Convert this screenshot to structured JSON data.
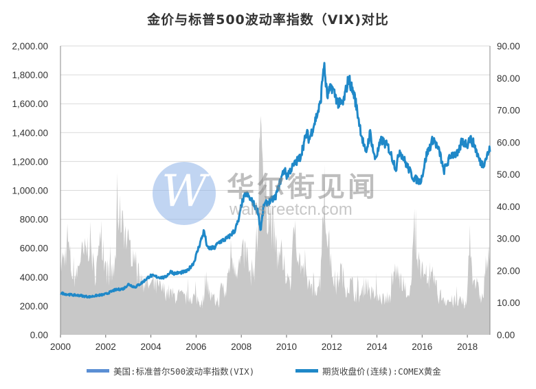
{
  "chart_data": {
    "type": "area+line",
    "title": "金价与标普500波动率指数（VIX)对比",
    "x_axis": {
      "range": [
        2000,
        2019.0
      ],
      "tick_labels": [
        "2000",
        "2002",
        "2004",
        "2006",
        "2008",
        "2010",
        "2012",
        "2014",
        "2016",
        "2018"
      ]
    },
    "y_left": {
      "range": [
        0,
        2000
      ],
      "tick_labels": [
        "0.00",
        "200.00",
        "400.00",
        "600.00",
        "800.00",
        "1,000.00",
        "1,200.00",
        "1,400.00",
        "1,600.00",
        "1,800.00",
        "2,000.00"
      ]
    },
    "y_right": {
      "range": [
        0,
        90
      ],
      "tick_labels": [
        "0.00",
        "10.00",
        "20.00",
        "30.00",
        "40.00",
        "50.00",
        "60.00",
        "70.00",
        "80.00",
        "90.00"
      ]
    },
    "grid": "horizontal",
    "legend_position": "bottom",
    "series": [
      {
        "name": "美国:标准普尔500波动率指数(VIX)",
        "axis": "right",
        "style": "area",
        "color": "#c8c8c8",
        "legend_color": "#5b8fd4",
        "points": [
          [
            2000.0,
            24
          ],
          [
            2000.2,
            26
          ],
          [
            2000.3,
            33
          ],
          [
            2000.5,
            21
          ],
          [
            2000.7,
            19
          ],
          [
            2000.9,
            27
          ],
          [
            2001.0,
            26
          ],
          [
            2001.2,
            29
          ],
          [
            2001.3,
            32
          ],
          [
            2001.5,
            20
          ],
          [
            2001.7,
            26
          ],
          [
            2001.75,
            43
          ],
          [
            2001.9,
            25
          ],
          [
            2002.0,
            22
          ],
          [
            2002.2,
            20
          ],
          [
            2002.4,
            21
          ],
          [
            2002.55,
            45
          ],
          [
            2002.6,
            38
          ],
          [
            2002.75,
            42
          ],
          [
            2002.85,
            34
          ],
          [
            2003.0,
            30
          ],
          [
            2003.2,
            28
          ],
          [
            2003.4,
            21
          ],
          [
            2003.6,
            19
          ],
          [
            2003.8,
            17
          ],
          [
            2004.0,
            16
          ],
          [
            2004.3,
            16
          ],
          [
            2004.5,
            15
          ],
          [
            2004.8,
            14
          ],
          [
            2005.0,
            13
          ],
          [
            2005.3,
            13
          ],
          [
            2005.5,
            12
          ],
          [
            2005.8,
            13
          ],
          [
            2006.0,
            12
          ],
          [
            2006.3,
            11
          ],
          [
            2006.45,
            20
          ],
          [
            2006.6,
            13
          ],
          [
            2006.9,
            11
          ],
          [
            2007.0,
            11
          ],
          [
            2007.15,
            17
          ],
          [
            2007.3,
            13
          ],
          [
            2007.55,
            28
          ],
          [
            2007.65,
            25
          ],
          [
            2007.85,
            22
          ],
          [
            2008.0,
            25
          ],
          [
            2008.2,
            28
          ],
          [
            2008.4,
            20
          ],
          [
            2008.6,
            23
          ],
          [
            2008.75,
            35
          ],
          [
            2008.82,
            70
          ],
          [
            2008.88,
            80
          ],
          [
            2008.95,
            55
          ],
          [
            2009.0,
            45
          ],
          [
            2009.2,
            42
          ],
          [
            2009.4,
            35
          ],
          [
            2009.6,
            26
          ],
          [
            2009.8,
            24
          ],
          [
            2010.0,
            20
          ],
          [
            2010.2,
            18
          ],
          [
            2010.38,
            40
          ],
          [
            2010.5,
            27
          ],
          [
            2010.7,
            22
          ],
          [
            2010.9,
            18
          ],
          [
            2011.0,
            17
          ],
          [
            2011.3,
            16
          ],
          [
            2011.5,
            18
          ],
          [
            2011.6,
            45
          ],
          [
            2011.7,
            40
          ],
          [
            2011.85,
            32
          ],
          [
            2012.0,
            22
          ],
          [
            2012.2,
            16
          ],
          [
            2012.4,
            22
          ],
          [
            2012.6,
            16
          ],
          [
            2012.9,
            17
          ],
          [
            2013.0,
            14
          ],
          [
            2013.3,
            13
          ],
          [
            2013.5,
            18
          ],
          [
            2013.8,
            13
          ],
          [
            2014.0,
            14
          ],
          [
            2014.3,
            12
          ],
          [
            2014.6,
            13
          ],
          [
            2014.8,
            22
          ],
          [
            2015.0,
            19
          ],
          [
            2015.3,
            14
          ],
          [
            2015.5,
            14
          ],
          [
            2015.65,
            40
          ],
          [
            2015.75,
            24
          ],
          [
            2016.0,
            22
          ],
          [
            2016.1,
            26
          ],
          [
            2016.3,
            15
          ],
          [
            2016.5,
            20
          ],
          [
            2016.7,
            13
          ],
          [
            2016.9,
            13
          ],
          [
            2017.0,
            12
          ],
          [
            2017.3,
            11
          ],
          [
            2017.6,
            11
          ],
          [
            2017.9,
            10
          ],
          [
            2018.0,
            12
          ],
          [
            2018.1,
            37
          ],
          [
            2018.2,
            22
          ],
          [
            2018.5,
            14
          ],
          [
            2018.7,
            12
          ],
          [
            2018.8,
            23
          ],
          [
            2018.95,
            25
          ],
          [
            2019.0,
            19
          ]
        ]
      },
      {
        "name": "期货收盘价(连续):COMEX黄金",
        "axis": "left",
        "style": "line",
        "color": "#1f88c8",
        "points": [
          [
            2000.0,
            290
          ],
          [
            2000.3,
            280
          ],
          [
            2000.6,
            275
          ],
          [
            2000.9,
            272
          ],
          [
            2001.0,
            268
          ],
          [
            2001.3,
            263
          ],
          [
            2001.6,
            272
          ],
          [
            2001.9,
            278
          ],
          [
            2002.0,
            282
          ],
          [
            2002.4,
            310
          ],
          [
            2002.8,
            320
          ],
          [
            2003.0,
            350
          ],
          [
            2003.3,
            330
          ],
          [
            2003.6,
            360
          ],
          [
            2003.9,
            400
          ],
          [
            2004.0,
            410
          ],
          [
            2004.3,
            400
          ],
          [
            2004.6,
            395
          ],
          [
            2004.9,
            440
          ],
          [
            2005.0,
            425
          ],
          [
            2005.3,
            430
          ],
          [
            2005.6,
            440
          ],
          [
            2005.9,
            500
          ],
          [
            2006.0,
            550
          ],
          [
            2006.35,
            720
          ],
          [
            2006.5,
            600
          ],
          [
            2006.8,
            600
          ],
          [
            2007.0,
            640
          ],
          [
            2007.4,
            670
          ],
          [
            2007.7,
            720
          ],
          [
            2007.9,
            800
          ],
          [
            2008.0,
            900
          ],
          [
            2008.2,
            980
          ],
          [
            2008.5,
            920
          ],
          [
            2008.75,
            850
          ],
          [
            2008.85,
            720
          ],
          [
            2009.0,
            900
          ],
          [
            2009.2,
            920
          ],
          [
            2009.5,
            950
          ],
          [
            2009.9,
            1150
          ],
          [
            2010.0,
            1100
          ],
          [
            2010.3,
            1170
          ],
          [
            2010.6,
            1230
          ],
          [
            2010.9,
            1400
          ],
          [
            2011.0,
            1350
          ],
          [
            2011.3,
            1500
          ],
          [
            2011.5,
            1600
          ],
          [
            2011.65,
            1880
          ],
          [
            2011.8,
            1650
          ],
          [
            2012.0,
            1720
          ],
          [
            2012.3,
            1600
          ],
          [
            2012.5,
            1600
          ],
          [
            2012.75,
            1780
          ],
          [
            2012.9,
            1700
          ],
          [
            2013.0,
            1660
          ],
          [
            2013.3,
            1400
          ],
          [
            2013.5,
            1250
          ],
          [
            2013.7,
            1400
          ],
          [
            2013.9,
            1220
          ],
          [
            2014.0,
            1250
          ],
          [
            2014.2,
            1350
          ],
          [
            2014.5,
            1300
          ],
          [
            2014.85,
            1150
          ],
          [
            2015.0,
            1280
          ],
          [
            2015.3,
            1180
          ],
          [
            2015.6,
            1090
          ],
          [
            2015.9,
            1060
          ],
          [
            2016.0,
            1100
          ],
          [
            2016.2,
            1250
          ],
          [
            2016.5,
            1360
          ],
          [
            2016.8,
            1250
          ],
          [
            2016.95,
            1130
          ],
          [
            2017.0,
            1150
          ],
          [
            2017.3,
            1250
          ],
          [
            2017.6,
            1250
          ],
          [
            2017.75,
            1340
          ],
          [
            2018.0,
            1320
          ],
          [
            2018.1,
            1360
          ],
          [
            2018.3,
            1320
          ],
          [
            2018.55,
            1200
          ],
          [
            2018.7,
            1180
          ],
          [
            2018.9,
            1250
          ],
          [
            2019.0,
            1285
          ]
        ]
      }
    ]
  },
  "watermark": {
    "logo_letter": "W",
    "cn_text": "华尔街见闻",
    "en_text": "wallstreetcn.com"
  }
}
